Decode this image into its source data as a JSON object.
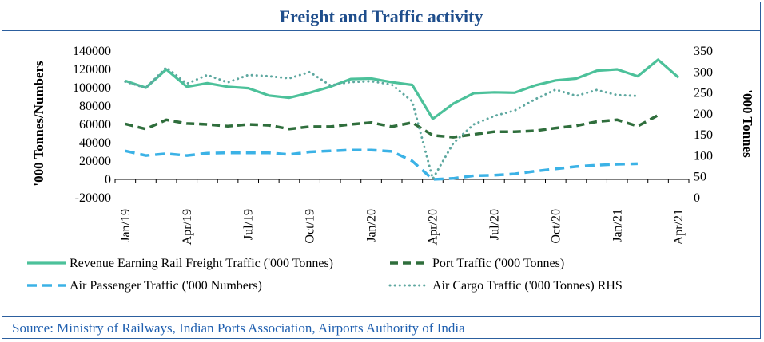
{
  "title": "Freight and Traffic activity",
  "source": "Source: Ministry of Railways, Indian Ports Association, Airports Authority of India",
  "colors": {
    "frame": "#2c5f9e",
    "title": "#1f4e8c",
    "source": "#2060b0",
    "rail": "#4cc19a",
    "port": "#2f6e3c",
    "air_passenger": "#3bb2e6",
    "air_cargo": "#5ea8a0"
  },
  "chart_data": {
    "type": "line",
    "x": [
      "Jan/19",
      "Feb/19",
      "Mar/19",
      "Apr/19",
      "May/19",
      "Jun/19",
      "Jul/19",
      "Aug/19",
      "Sep/19",
      "Oct/19",
      "Nov/19",
      "Dec/19",
      "Jan/20",
      "Feb/20",
      "Mar/20",
      "Apr/20",
      "May/20",
      "Jun/20",
      "Jul/20",
      "Aug/20",
      "Sep/20",
      "Oct/20",
      "Nov/20",
      "Dec/20",
      "Jan/21",
      "Feb/21",
      "Mar/21",
      "Apr/21"
    ],
    "x_tick_labels": [
      "Jan/19",
      "Apr/19",
      "Jul/19",
      "Oct/19",
      "Jan/20",
      "Apr/20",
      "Jul/20",
      "Oct/20",
      "Jan/21",
      "Apr/21"
    ],
    "ylabel": "'000 Tonnes/Numbers",
    "y2label": "'000 Tonnes",
    "ylim": [
      -20000,
      140000
    ],
    "y_ticks": [
      140000,
      120000,
      100000,
      80000,
      60000,
      40000,
      20000,
      0,
      -20000
    ],
    "y2lim": [
      0,
      350
    ],
    "y2_ticks": [
      350,
      300,
      250,
      200,
      150,
      100,
      50,
      0
    ],
    "grid": false,
    "legend_position": "bottom",
    "series": [
      {
        "name": "Revenue Earning Rail Freight Traffic ('000 Tonnes)",
        "axis": "left",
        "style": "solid",
        "values": [
          107500,
          100000,
          120000,
          101000,
          105000,
          101000,
          99500,
          91500,
          89000,
          94500,
          101000,
          109500,
          110000,
          106000,
          103000,
          66000,
          82500,
          94000,
          95000,
          94500,
          102500,
          108000,
          110000,
          118500,
          120000,
          112500,
          130500,
          111000
        ]
      },
      {
        "name": "Port Traffic ('000 Tonnes)",
        "axis": "left",
        "style": "dashed",
        "values": [
          60500,
          55000,
          65000,
          61000,
          60000,
          58000,
          60000,
          59000,
          55000,
          57500,
          57500,
          60000,
          62000,
          57500,
          62000,
          48000,
          46000,
          49000,
          52000,
          52000,
          53000,
          56000,
          58500,
          63000,
          65000,
          58000,
          70000,
          null
        ]
      },
      {
        "name": "Air Passenger Traffic ('000 Numbers)",
        "axis": "left",
        "style": "dashed",
        "values": [
          31000,
          26000,
          28000,
          26000,
          28500,
          29000,
          29000,
          29000,
          27000,
          30000,
          31000,
          32000,
          32000,
          30500,
          20000,
          0,
          1000,
          4000,
          4500,
          6000,
          9000,
          11500,
          14000,
          15500,
          16500,
          17000,
          null,
          null
        ]
      },
      {
        "name": "Air Cargo Traffic ('000 Tonnes) RHS",
        "axis": "right",
        "style": "dotted",
        "values": [
          277,
          262,
          311,
          272,
          293,
          275,
          293,
          290,
          285,
          300,
          268,
          276,
          278,
          270,
          230,
          45,
          130,
          175,
          195,
          208,
          235,
          258,
          243,
          257,
          245,
          243,
          null,
          null
        ]
      }
    ]
  }
}
